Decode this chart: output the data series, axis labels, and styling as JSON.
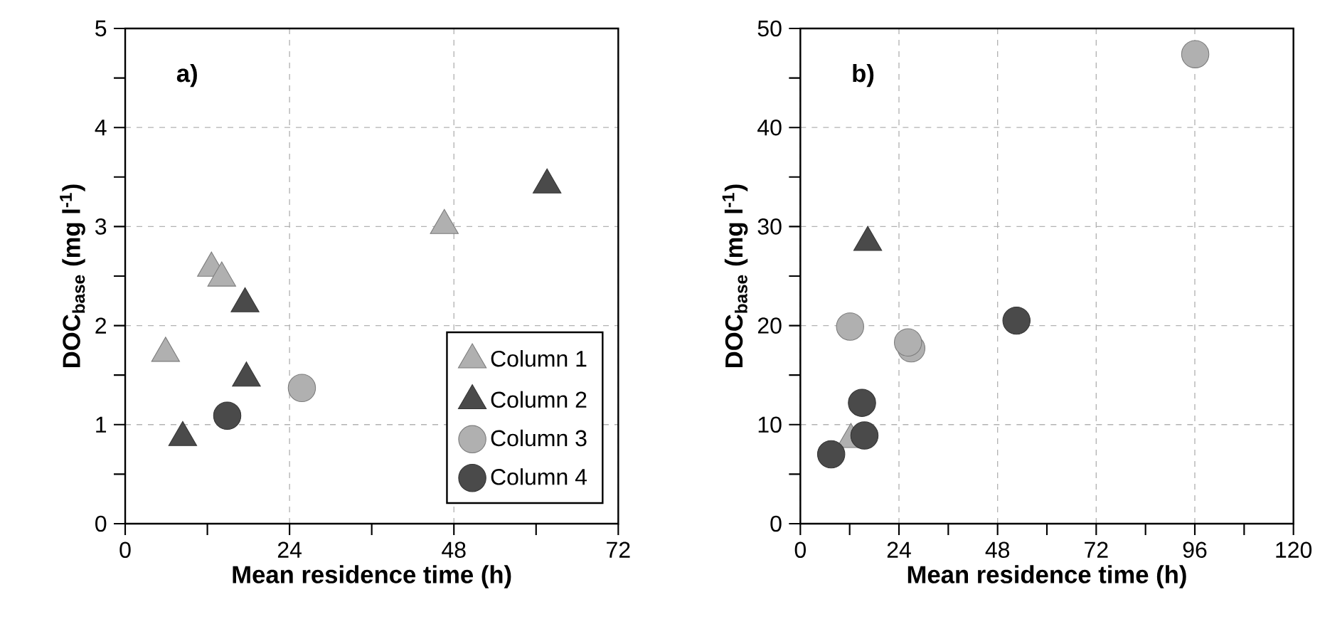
{
  "chart_data": [
    {
      "type": "scatter",
      "xlabel": "Mean residence time (h)",
      "ylabel": "DOC$_{base}$ (mg l$^{-1}$)",
      "annotations": [
        "a)"
      ],
      "xlim": [
        0,
        72
      ],
      "xticks": [
        0,
        {
          "value": 12,
          "label": null
        },
        24,
        {
          "value": 36,
          "label": null
        },
        48,
        {
          "value": 60,
          "label": null
        },
        72
      ],
      "ylim": [
        0,
        5
      ],
      "yticks": [
        0,
        {
          "value": 0.5,
          "label": null
        },
        1,
        {
          "value": 1.5,
          "label": null
        },
        2,
        {
          "value": 2.5,
          "label": null
        },
        3,
        {
          "value": 3.5,
          "label": null
        },
        4,
        {
          "value": 4.5,
          "label": null
        },
        5
      ],
      "grid": true,
      "legend": "bottom right",
      "series": [
        {
          "name": "Column 1",
          "color": "#b0b0b0",
          "marker": "triangle",
          "x": [
            5.9,
            12.6,
            14.1,
            46.6
          ],
          "values": [
            1.72,
            2.58,
            2.48,
            3.01
          ]
        },
        {
          "name": "Column 2",
          "color": "#4a4a4a",
          "marker": "triangle",
          "x": [
            8.4,
            17.5,
            17.7,
            61.6
          ],
          "values": [
            0.87,
            2.22,
            1.47,
            3.42
          ]
        },
        {
          "name": "Column 3",
          "color": "#b0b0b0",
          "marker": "circle",
          "x": [
            25.8
          ],
          "values": [
            1.37
          ]
        },
        {
          "name": "Column 4",
          "color": "#4a4a4a",
          "marker": "circle",
          "x": [
            14.9
          ],
          "values": [
            1.09
          ]
        }
      ]
    },
    {
      "type": "scatter",
      "xlabel": "Mean residence time (h)",
      "ylabel": "DOC$_{base}$ (mg l$^{-1}$)",
      "annotations": [
        "b)"
      ],
      "xlim": [
        0,
        120
      ],
      "xticks": [
        0,
        {
          "value": 12,
          "label": null
        },
        24,
        {
          "value": 36,
          "label": null
        },
        48,
        {
          "value": 60,
          "label": null
        },
        72,
        {
          "value": 84,
          "label": null
        },
        96,
        {
          "value": 108,
          "label": null
        },
        120
      ],
      "ylim": [
        0,
        50
      ],
      "yticks": [
        0,
        {
          "value": 5,
          "label": null
        },
        10,
        {
          "value": 15,
          "label": null
        },
        20,
        {
          "value": 25,
          "label": null
        },
        30,
        {
          "value": 35,
          "label": null
        },
        40,
        {
          "value": 45,
          "label": null
        },
        50
      ],
      "grid": true,
      "series": [
        {
          "color": "#b0b0b0",
          "marker": "triangle",
          "x": [
            12.3
          ],
          "values": [
            8.5
          ]
        },
        {
          "color": "#4a4a4a",
          "marker": "triangle",
          "x": [
            16.4
          ],
          "values": [
            28.4
          ]
        },
        {
          "color": "#b0b0b0",
          "marker": "circle",
          "x": [
            96.1,
            12.1,
            27.0,
            26.2
          ],
          "values": [
            47.4,
            19.9,
            17.7,
            18.3
          ]
        },
        {
          "color": "#4a4a4a",
          "marker": "circle",
          "x": [
            7.5,
            15.0,
            15.6,
            52.6
          ],
          "values": [
            7.0,
            12.2,
            8.9,
            20.5
          ]
        }
      ]
    }
  ]
}
